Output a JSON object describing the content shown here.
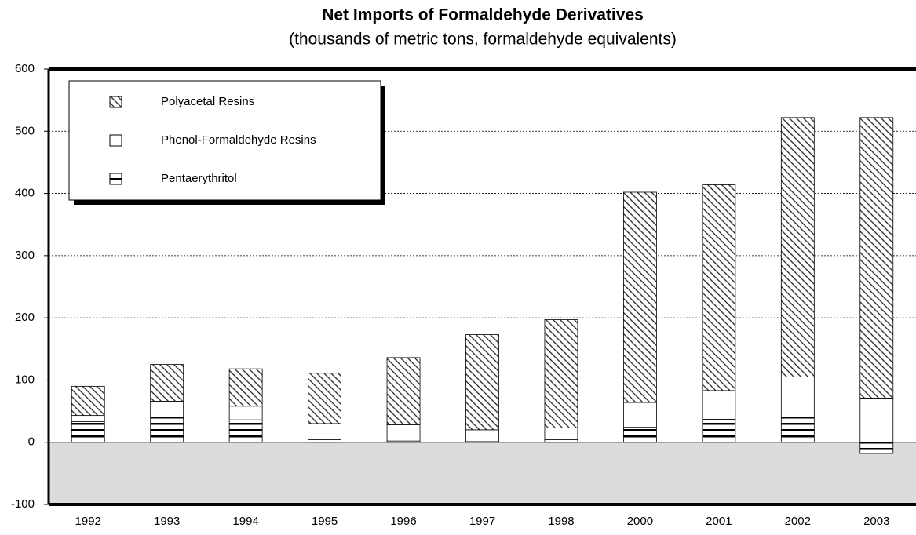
{
  "chart_data": {
    "type": "bar",
    "stacked": true,
    "title": "Net Imports of Formaldehyde Derivatives",
    "subtitle": "(thousands of metric tons, formaldehyde equivalents)",
    "categories": [
      "1992",
      "1993",
      "1994",
      "1995",
      "1996",
      "1997",
      "1998",
      "2000",
      "2001",
      "2002",
      "2003"
    ],
    "series": [
      {
        "name": "Pentaerythritol",
        "pattern": "horizontal",
        "values": [
          33,
          40,
          36,
          4,
          2,
          1,
          4,
          24,
          37,
          40,
          -18
        ]
      },
      {
        "name": "Phenol-Formaldehyde Resins",
        "pattern": "none",
        "values": [
          10,
          26,
          22,
          26,
          26,
          19,
          19,
          40,
          46,
          65,
          71
        ]
      },
      {
        "name": "Polyacetal Resins",
        "pattern": "diagonal",
        "values": [
          47,
          59,
          60,
          81,
          108,
          153,
          174,
          338,
          331,
          417,
          451
        ]
      }
    ],
    "ylim": [
      -100,
      600
    ],
    "yticks": [
      -100,
      0,
      100,
      200,
      300,
      400,
      500,
      600
    ],
    "grid": true,
    "legend": "top-left"
  }
}
